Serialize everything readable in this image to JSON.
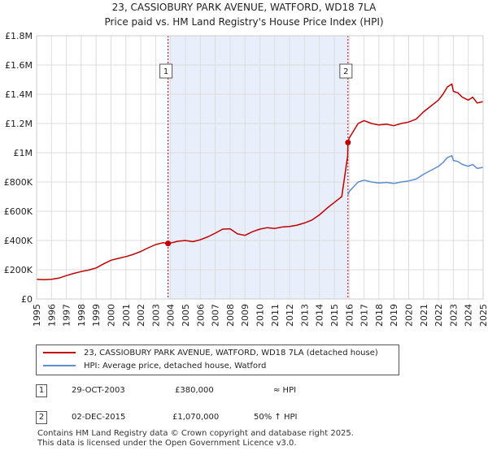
{
  "chart_data": {
    "type": "line",
    "title": "23, CASSIOBURY PARK AVENUE, WATFORD, WD18 7LA",
    "subtitle": "Price paid vs. HM Land Registry's House Price Index (HPI)",
    "xlim": [
      1995,
      2025
    ],
    "ylim": [
      0,
      1800000
    ],
    "x_ticks": [
      "1995",
      "1996",
      "1997",
      "1998",
      "1999",
      "2000",
      "2001",
      "2002",
      "2003",
      "2004",
      "2005",
      "2006",
      "2007",
      "2008",
      "2009",
      "2010",
      "2011",
      "2012",
      "2013",
      "2014",
      "2015",
      "2016",
      "2017",
      "2018",
      "2019",
      "2020",
      "2021",
      "2022",
      "2023",
      "2024",
      "2025"
    ],
    "y_ticks": [
      {
        "value": 0,
        "label": "£0"
      },
      {
        "value": 200000,
        "label": "£200K"
      },
      {
        "value": 400000,
        "label": "£400K"
      },
      {
        "value": 600000,
        "label": "£600K"
      },
      {
        "value": 800000,
        "label": "£800K"
      },
      {
        "value": 1000000,
        "label": "£1M"
      },
      {
        "value": 1200000,
        "label": "£1.2M"
      },
      {
        "value": 1400000,
        "label": "£1.4M"
      },
      {
        "value": 1600000,
        "label": "£1.6M"
      },
      {
        "value": 1800000,
        "label": "£1.8M"
      }
    ],
    "grid": true,
    "shaded_region": {
      "from": 2003.83,
      "to": 2015.92
    },
    "colors": {
      "red": "#c00000",
      "blue": "#5b8ed0",
      "shade": "#e8eefa",
      "grid": "#dddddd"
    },
    "series": [
      {
        "name": "23, CASSIOBURY PARK AVENUE, WATFORD, WD18 7LA (detached house)",
        "color": "#c00000",
        "x": [
          1995.0,
          1995.5,
          1996.0,
          1996.5,
          1997.0,
          1997.5,
          1998.0,
          1998.5,
          1999.0,
          1999.5,
          2000.0,
          2000.5,
          2001.0,
          2001.5,
          2002.0,
          2002.5,
          2003.0,
          2003.5,
          2003.83,
          2004.0,
          2004.5,
          2005.0,
          2005.5,
          2006.0,
          2006.5,
          2007.0,
          2007.5,
          2008.0,
          2008.5,
          2009.0,
          2009.5,
          2010.0,
          2010.5,
          2011.0,
          2011.5,
          2012.0,
          2012.5,
          2013.0,
          2013.5,
          2014.0,
          2014.5,
          2015.0,
          2015.5,
          2015.9,
          2015.92,
          2016.0,
          2016.3,
          2016.6,
          2017.0,
          2017.5,
          2018.0,
          2018.5,
          2019.0,
          2019.5,
          2020.0,
          2020.5,
          2021.0,
          2021.5,
          2022.0,
          2022.3,
          2022.6,
          2022.9,
          2023.0,
          2023.3,
          2023.6,
          2024.0,
          2024.3,
          2024.6,
          2025.0
        ],
        "values": [
          135000,
          132000,
          135000,
          143000,
          160000,
          175000,
          188000,
          198000,
          212000,
          240000,
          265000,
          278000,
          290000,
          305000,
          325000,
          350000,
          372000,
          385000,
          380000,
          382000,
          395000,
          400000,
          392000,
          405000,
          425000,
          450000,
          478000,
          480000,
          445000,
          435000,
          460000,
          478000,
          488000,
          482000,
          492000,
          496000,
          505000,
          520000,
          540000,
          575000,
          620000,
          660000,
          700000,
          980000,
          1070000,
          1100000,
          1150000,
          1200000,
          1220000,
          1200000,
          1190000,
          1195000,
          1185000,
          1200000,
          1210000,
          1230000,
          1280000,
          1320000,
          1360000,
          1400000,
          1450000,
          1470000,
          1420000,
          1410000,
          1380000,
          1360000,
          1380000,
          1340000,
          1350000
        ]
      },
      {
        "name": "HPI: Average price, detached house, Watford",
        "color": "#5b8ed0",
        "x": [
          2015.92,
          2016.0,
          2016.3,
          2016.6,
          2017.0,
          2017.5,
          2018.0,
          2018.5,
          2019.0,
          2019.5,
          2020.0,
          2020.5,
          2021.0,
          2021.5,
          2022.0,
          2022.3,
          2022.6,
          2022.9,
          2023.0,
          2023.3,
          2023.6,
          2024.0,
          2024.3,
          2024.6,
          2025.0
        ],
        "values": [
          713000,
          735000,
          767000,
          800000,
          813000,
          800000,
          793000,
          797000,
          790000,
          800000,
          807000,
          820000,
          853000,
          880000,
          907000,
          933000,
          967000,
          980000,
          947000,
          940000,
          920000,
          907000,
          920000,
          893000,
          900000
        ]
      }
    ],
    "sales": [
      {
        "marker": "1",
        "x": 2003.83,
        "value": 380000
      },
      {
        "marker": "2",
        "x": 2015.92,
        "value": 1070000
      }
    ]
  },
  "legend": {
    "red_label": "23, CASSIOBURY PARK AVENUE, WATFORD, WD18 7LA (detached house)",
    "blue_label": "HPI: Average price, detached house, Watford"
  },
  "sales_table": [
    {
      "marker": "1",
      "date": "29-OCT-2003",
      "price": "£380,000",
      "hpi": "≈ HPI"
    },
    {
      "marker": "2",
      "date": "02-DEC-2015",
      "price": "£1,070,000",
      "hpi": "50% ↑ HPI"
    }
  ],
  "footer": {
    "line1": "Contains HM Land Registry data © Crown copyright and database right 2025.",
    "line2": "This data is licensed under the Open Government Licence v3.0."
  }
}
